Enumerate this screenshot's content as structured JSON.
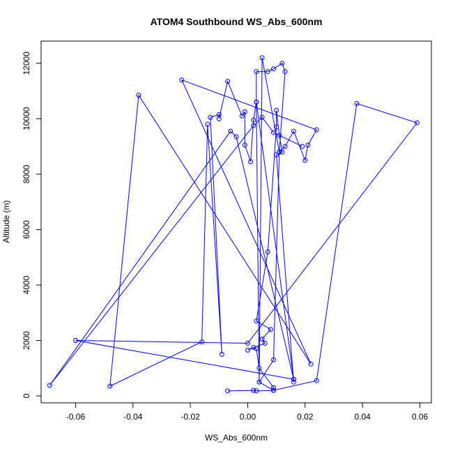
{
  "chart_data": {
    "type": "line",
    "title": "ATOM4 Southbound WS_Abs_600nm",
    "xlabel": "WS_Abs_600nm",
    "ylabel": "Altitude (m)",
    "xlim": [
      -0.072,
      0.064
    ],
    "ylim": [
      -250,
      12800
    ],
    "x_ticks": [
      -0.06,
      -0.04,
      -0.02,
      0.0,
      0.02,
      0.04,
      0.06
    ],
    "x_tick_labels": [
      "-0.06",
      "-0.04",
      "-0.02",
      "0.00",
      "0.02",
      "0.04",
      "0.06"
    ],
    "y_ticks": [
      0,
      2000,
      4000,
      6000,
      8000,
      10000,
      12000
    ],
    "y_tick_labels": [
      "0",
      "2000",
      "4000",
      "6000",
      "8000",
      "10000",
      "12000"
    ],
    "grid": false,
    "series": [
      {
        "color": "#0000ff",
        "marker": "open-circle",
        "points": [
          [
            -0.007,
            180
          ],
          [
            0.002,
            200
          ],
          [
            0.003,
            180
          ],
          [
            0.009,
            200
          ],
          [
            0.009,
            300
          ],
          [
            0.004,
            1000
          ],
          [
            0.003,
            1700
          ],
          [
            0.002,
            1750
          ],
          [
            0.0,
            1650
          ],
          [
            0.006,
            1900
          ],
          [
            0.005,
            2050
          ],
          [
            0.008,
            2400
          ],
          [
            0.003,
            2700
          ],
          [
            0.007,
            5200
          ],
          [
            0.01,
            9700
          ],
          [
            0.01,
            10300
          ],
          [
            0.011,
            9400
          ],
          [
            0.012,
            8800
          ],
          [
            0.01,
            8700
          ],
          [
            0.016,
            500
          ],
          [
            0.016,
            600
          ],
          [
            0.003,
            10600
          ],
          [
            0.004,
            500
          ],
          [
            0.009,
            1300
          ],
          [
            0.011,
            8800
          ],
          [
            0.013,
            11700
          ],
          [
            0.012,
            12000
          ],
          [
            0.009,
            11800
          ],
          [
            0.007,
            11700
          ],
          [
            0.003,
            11700
          ],
          [
            0.003,
            10600
          ],
          [
            0.002,
            9950
          ],
          [
            0.001,
            8450
          ],
          [
            -0.001,
            9050
          ],
          [
            -0.001,
            10250
          ],
          [
            -0.002,
            10100
          ],
          [
            -0.007,
            11350
          ],
          [
            -0.01,
            10000
          ],
          [
            -0.01,
            10150
          ],
          [
            -0.013,
            10050
          ],
          [
            -0.009,
            1500
          ],
          [
            -0.014,
            9800
          ],
          [
            -0.016,
            1950
          ],
          [
            -0.048,
            350
          ],
          [
            -0.038,
            10850
          ],
          [
            0.022,
            1150
          ],
          [
            -0.023,
            11400
          ],
          [
            0.024,
            9600
          ],
          [
            0.021,
            9050
          ],
          [
            0.02,
            8500
          ],
          [
            0.016,
            9550
          ],
          [
            0.013,
            9000
          ],
          [
            0.011,
            8800
          ],
          [
            0.005,
            12200
          ],
          [
            0.004,
            500
          ],
          [
            0.009,
            200
          ],
          [
            0.024,
            550
          ],
          [
            0.038,
            10550
          ],
          [
            0.059,
            9850
          ],
          [
            0.0,
            1900
          ],
          [
            -0.06,
            2000
          ],
          [
            0.016,
            600
          ],
          [
            -0.004,
            9350
          ],
          [
            -0.006,
            9550
          ],
          [
            -0.069,
            380
          ],
          [
            0.002,
            9750
          ],
          [
            0.005,
            10050
          ],
          [
            0.009,
            9500
          ],
          [
            0.019,
            9000
          ]
        ]
      }
    ]
  }
}
